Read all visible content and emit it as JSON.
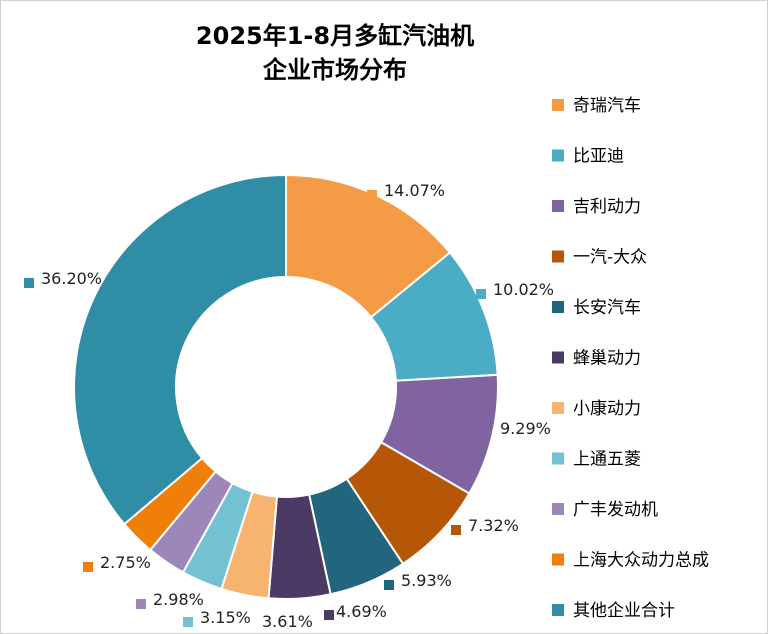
{
  "chart_data": {
    "type": "pie",
    "title": [
      "2025年1-8月多缸汽油机",
      "企业市场分布"
    ],
    "categories": [
      "奇瑞汽车",
      "比亚迪",
      "吉利动力",
      "一汽-大众",
      "长安汽车",
      "蜂巢动力",
      "小康动力",
      "上通五菱",
      "广丰发动机",
      "上海大众动力总成",
      "其他企业合计"
    ],
    "values": [
      14.07,
      10.02,
      9.29,
      7.32,
      5.93,
      4.69,
      3.61,
      3.15,
      2.98,
      2.75,
      36.2
    ],
    "labels": [
      "14.07%",
      "10.02%",
      "9.29%",
      "7.32%",
      "5.93%",
      "4.69%",
      "3.61%",
      "3.15%",
      "2.98%",
      "2.75%",
      "36.20%"
    ],
    "colors": [
      "#F59A45",
      "#4BACC6",
      "#8064A2",
      "#B65708",
      "#23657C",
      "#4B3A64",
      "#F7B471",
      "#72C2D3",
      "#9D87B8",
      "#F07F09",
      "#2F8EA6"
    ],
    "legend_position": "right",
    "donut": true
  }
}
